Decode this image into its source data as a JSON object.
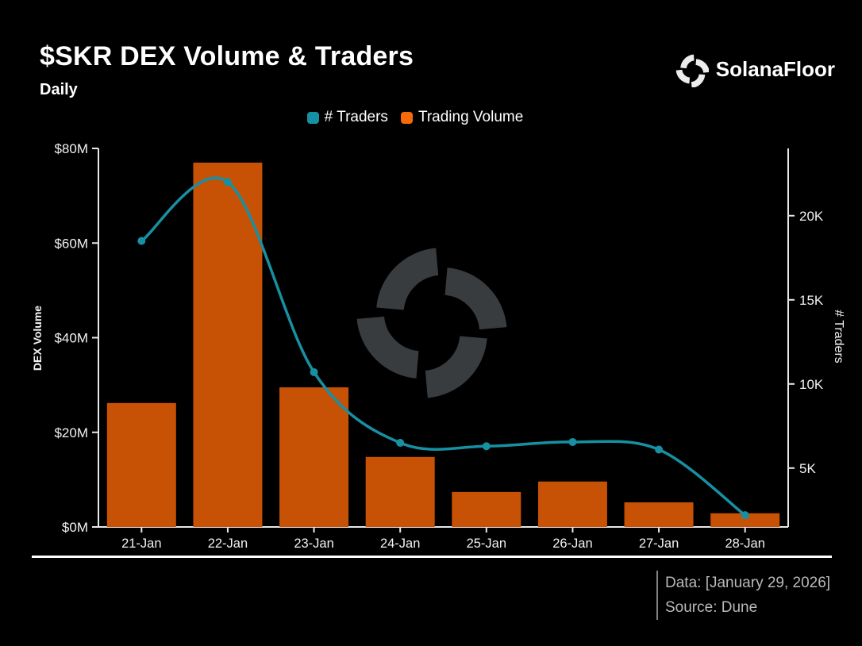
{
  "header": {
    "title": "$SKR DEX Volume & Traders",
    "subtitle": "Daily",
    "brand": {
      "name": "SolanaFloor",
      "icon": "solanafloor-pinwheel-icon"
    }
  },
  "legend": {
    "items": [
      {
        "label": "# Traders",
        "color": "#1790a3"
      },
      {
        "label": "Trading Volume",
        "color": "#f76a09"
      }
    ]
  },
  "chart_data": {
    "type": "combo",
    "title": "$SKR DEX Volume & Traders",
    "subtitle": "Daily",
    "categories": [
      "21-Jan",
      "22-Jan",
      "23-Jan",
      "24-Jan",
      "25-Jan",
      "26-Jan",
      "27-Jan",
      "28-Jan"
    ],
    "series": [
      {
        "name": "Trading Volume",
        "type": "bar",
        "axis": "left",
        "unit": "$M USD",
        "color": "#c75104",
        "values": [
          26.2,
          77,
          29.5,
          14.8,
          7.4,
          9.6,
          5.2,
          2.9
        ]
      },
      {
        "name": "# Traders",
        "type": "line",
        "axis": "right",
        "unit": "traders",
        "color": "#1790a3",
        "values": [
          18500,
          22000,
          10700,
          6500,
          6300,
          6550,
          6100,
          2200
        ]
      }
    ],
    "left_axis": {
      "label": "DEX Volume",
      "range": [
        0,
        80
      ],
      "ticks": [
        0,
        20,
        40,
        60,
        80
      ],
      "tick_labels": [
        "$0M",
        "$20M",
        "$40M",
        "$60M",
        "$80M"
      ]
    },
    "right_axis": {
      "label": "# Traders",
      "range": [
        1500,
        24000
      ],
      "ticks": [
        5000,
        10000,
        15000,
        20000
      ],
      "tick_labels": [
        "5K",
        "10K",
        "15K",
        "20K"
      ]
    },
    "grid": false,
    "legend_position": "top-center"
  },
  "watermark": {
    "icon": "solanafloor-pinwheel-icon"
  },
  "footer": {
    "data_line": "Data: [January 29, 2026]",
    "source_line": "Source: Dune"
  },
  "colors": {
    "background": "#000000",
    "axis": "#e8e8e8",
    "tick_text": "#f2f2f2",
    "watermark": "#393c3f",
    "footer_text": "#b9b9b9"
  }
}
